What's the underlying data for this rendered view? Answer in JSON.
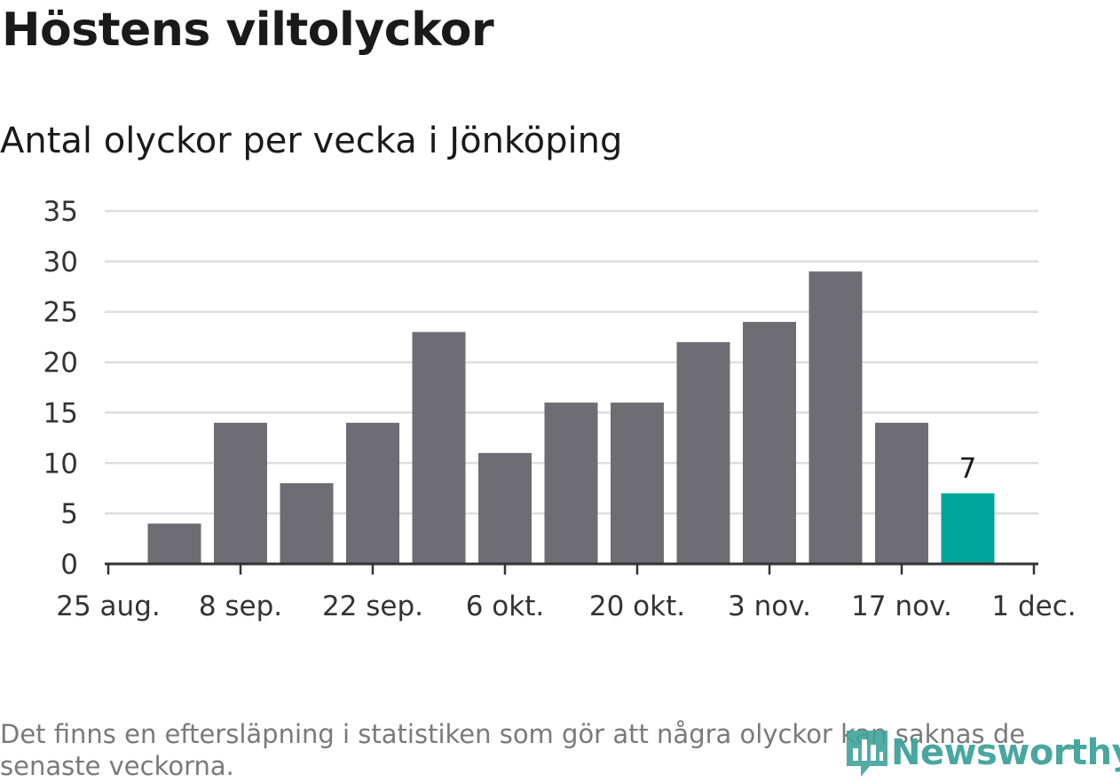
{
  "header": {
    "title": "Höstens viltolyckor",
    "subtitle": "Antal olyckor per vecka i Jönköping"
  },
  "footnote": "Det finns en eftersläpning i statistiken som gör att några olyckor kan saknas de senaste veckorna.",
  "logo": {
    "text": "Newsworthy",
    "icon": "chart-bubble-icon",
    "color": "#3fa39a"
  },
  "chart_data": {
    "type": "bar",
    "xlabel": "",
    "ylabel": "",
    "ylim": [
      0,
      35
    ],
    "yticks": [
      0,
      5,
      10,
      15,
      20,
      25,
      30,
      35
    ],
    "xticks": [
      "25 aug.",
      "8 sep.",
      "22 sep.",
      "6 okt.",
      "20 okt.",
      "3 nov.",
      "17 nov.",
      "1 dec."
    ],
    "grid": true,
    "categories": [
      "1 sep.",
      "8 sep.",
      "15 sep.",
      "22 sep.",
      "29 sep.",
      "6 okt.",
      "13 okt.",
      "20 okt.",
      "27 okt.",
      "3 nov.",
      "10 nov.",
      "17 nov.",
      "24 nov."
    ],
    "values": [
      4,
      14,
      8,
      14,
      23,
      11,
      16,
      16,
      22,
      24,
      29,
      14,
      7
    ],
    "bar_color": "#6e6d73",
    "highlight_color": "#00a59a",
    "highlight_index": 12,
    "annotations": [
      {
        "index": 12,
        "text": "7"
      }
    ]
  }
}
